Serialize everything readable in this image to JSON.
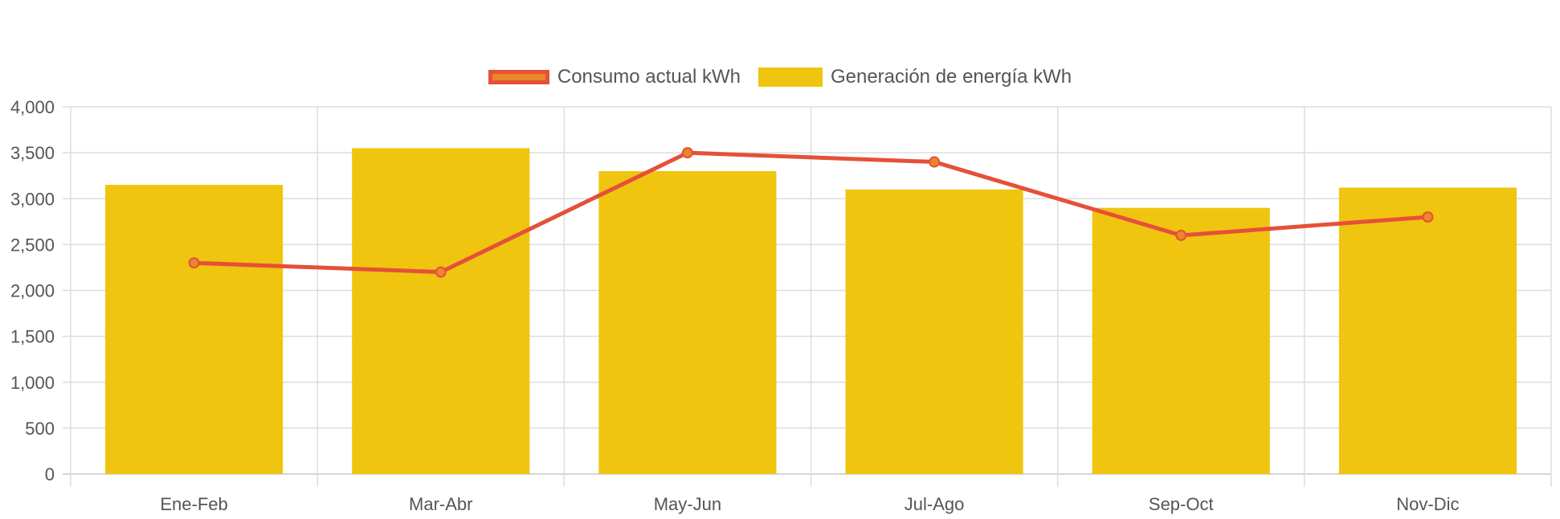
{
  "chart_data": {
    "type": "bar",
    "categories": [
      "Ene-Feb",
      "Mar-Abr",
      "May-Jun",
      "Jul-Ago",
      "Sep-Oct",
      "Nov-Dic"
    ],
    "series": [
      {
        "name": "Generación de energía kWh",
        "type": "bar",
        "values": [
          3150,
          3550,
          3300,
          3100,
          2900,
          3120
        ]
      },
      {
        "name": "Consumo actual kWh",
        "type": "line",
        "values": [
          2300,
          2200,
          3500,
          3400,
          2600,
          2800
        ]
      }
    ],
    "ylim": [
      0,
      4000
    ],
    "yticks": [
      "0",
      "500",
      "1,000",
      "1,500",
      "2,000",
      "2,500",
      "3,000",
      "3,500",
      "4,000"
    ],
    "xlabel": "",
    "ylabel": "",
    "grid": true,
    "legend_position": "top",
    "colors": {
      "bar": "#f0c510",
      "line": "#e55039",
      "point_fill": "#e8872c",
      "grid": "#dddddd"
    }
  },
  "legend": {
    "line_label": "Consumo actual kWh",
    "bar_label": "Generación de energía kWh"
  }
}
